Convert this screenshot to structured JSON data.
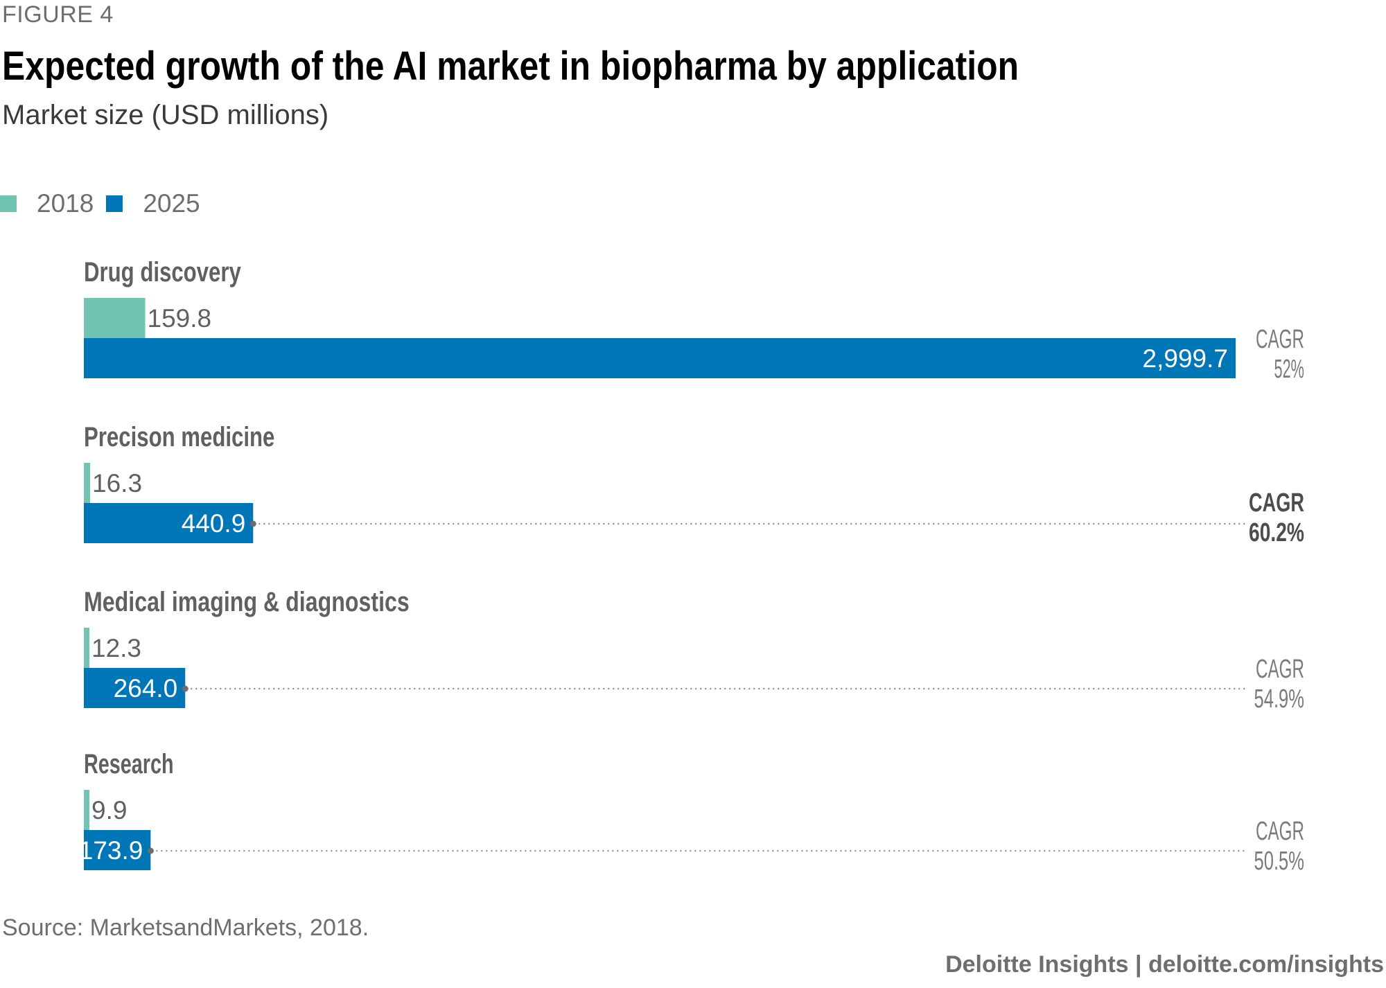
{
  "figure_label": "FIGURE 4",
  "source": "Source: MarketsandMarkets, 2018.",
  "footer": "Deloitte Insights | deloitte.com/insights",
  "colors": {
    "y2018": "#72c3b3",
    "y2025": "#0076b6",
    "text": "#5f6062",
    "dots": "#8a8b8d"
  },
  "chart_data": {
    "type": "bar",
    "orientation": "horizontal",
    "title": "Expected growth of the AI market in biopharma by application",
    "subtitle": "Market size (USD millions)",
    "categories": [
      "Drug discovery",
      "Precison medicine",
      "Medical imaging & diagnostics",
      "Research"
    ],
    "series": [
      {
        "name": "2018",
        "values": [
          159.8,
          16.3,
          12.3,
          9.9
        ],
        "labels": [
          "159.8",
          "16.3",
          "12.3",
          "9.9"
        ]
      },
      {
        "name": "2025",
        "values": [
          2999.7,
          440.9,
          264.0,
          173.9
        ],
        "labels": [
          "2,999.7",
          "440.9",
          "264.0",
          "173.9"
        ]
      }
    ],
    "cagr": [
      {
        "label": "CAGR",
        "value": "52%",
        "bold": false
      },
      {
        "label": "CAGR",
        "value": "60.2%",
        "bold": true
      },
      {
        "label": "CAGR",
        "value": "54.9%",
        "bold": false
      },
      {
        "label": "CAGR",
        "value": "50.5%",
        "bold": false
      }
    ],
    "xlim": [
      0,
      2999.7
    ],
    "grid": false,
    "legend_position": "top-left"
  }
}
